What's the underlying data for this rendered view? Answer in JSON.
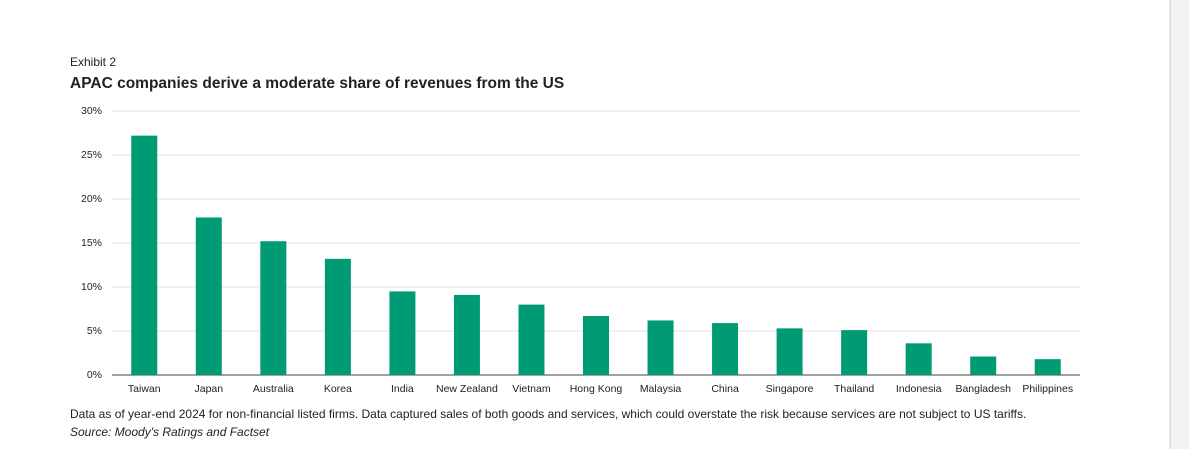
{
  "chart_data": {
    "type": "bar",
    "exhibit": "Exhibit 2",
    "title": "APAC companies derive a moderate share of revenues from the US",
    "categories": [
      "Taiwan",
      "Japan",
      "Australia",
      "Korea",
      "India",
      "New Zealand",
      "Vietnam",
      "Hong Kong",
      "Malaysia",
      "China",
      "Singapore",
      "Thailand",
      "Indonesia",
      "Bangladesh",
      "Philippines"
    ],
    "values": [
      27.2,
      17.9,
      15.2,
      13.2,
      9.5,
      9.1,
      8.0,
      6.7,
      6.2,
      5.9,
      5.3,
      5.1,
      3.6,
      2.1,
      1.8
    ],
    "color": "#009a74",
    "ylim": [
      0,
      30
    ],
    "yticks": [
      {
        "value": 0,
        "label": "0%"
      },
      {
        "value": 5,
        "label": "5%"
      },
      {
        "value": 10,
        "label": "10%"
      },
      {
        "value": 15,
        "label": "15%"
      },
      {
        "value": 20,
        "label": "20%"
      },
      {
        "value": 25,
        "label": "25%"
      },
      {
        "value": 30,
        "label": "30%"
      }
    ],
    "grid": true,
    "note": "Data as of year-end 2024 for non-financial listed firms. Data captured sales of both goods and services, which could overstate the risk because services are not subject to US tariffs.",
    "source": "Source: Moody's Ratings and Factset"
  }
}
